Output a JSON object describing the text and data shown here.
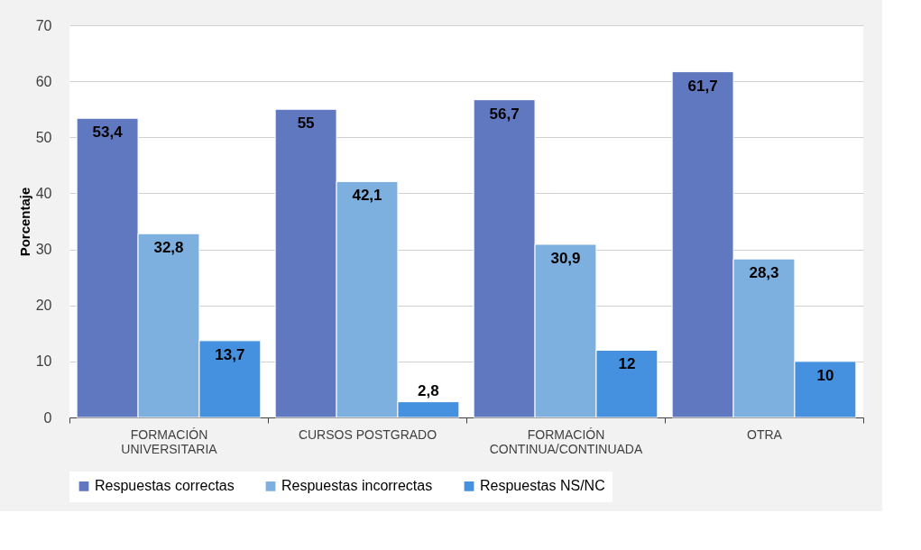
{
  "chart_data": {
    "type": "bar",
    "ylabel": "Porcentaje",
    "categories": [
      "FORMACIÓN UNIVERSITARIA",
      "CURSOS POSTGRADO",
      "FORMACIÓN CONTINUA/CONTINUADA",
      "OTRA"
    ],
    "series": [
      {
        "name": "Respuestas correctas",
        "color": "#5f78bf",
        "values": [
          53.4,
          55,
          56.7,
          61.7
        ],
        "value_labels": [
          "53,4",
          "55",
          "56,7",
          "61,7"
        ]
      },
      {
        "name": "Respuestas incorrectas",
        "color": "#7db0df",
        "values": [
          32.8,
          42.1,
          30.9,
          28.3
        ],
        "value_labels": [
          "32,8",
          "42,1",
          "30,9",
          "28,3"
        ]
      },
      {
        "name": "Respuestas NS/NC",
        "color": "#4590df",
        "values": [
          13.7,
          2.8,
          12,
          10
        ],
        "value_labels": [
          "13,7",
          "2,8",
          "12",
          "10"
        ]
      }
    ],
    "ylim": [
      0,
      70
    ],
    "yticks": [
      0,
      10,
      20,
      30,
      40,
      50,
      60,
      70
    ],
    "grid": "y",
    "legend": "bottom"
  }
}
